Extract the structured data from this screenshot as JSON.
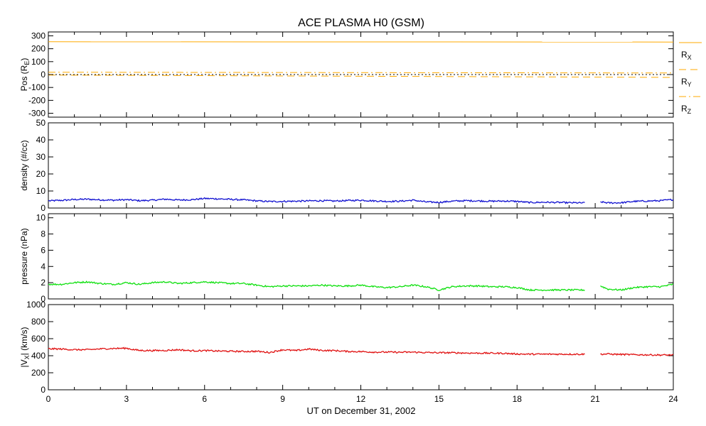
{
  "chart_data": {
    "title": "ACE PLASMA H0 (GSM)",
    "type": "line",
    "xlabel": "UT on December 31, 2002",
    "xlim": [
      0,
      24
    ],
    "xticks": [
      "0",
      "3",
      "6",
      "9",
      "12",
      "15",
      "18",
      "21",
      "24"
    ],
    "panels": [
      {
        "key": "pos",
        "ylabel_main": "Pos (R",
        "ylabel_sub": "E",
        "ylabel_tail": ")",
        "ylim": [
          -330,
          330
        ],
        "yticks": [
          "300",
          "200",
          "100",
          "0",
          "-100",
          "-200",
          "-300"
        ],
        "legend": [
          {
            "base": "R",
            "sub": "X",
            "color": "#ffaa00",
            "style": "solid"
          },
          {
            "base": "R",
            "sub": "Y",
            "color": "#ffaa00",
            "style": "dashed"
          },
          {
            "base": "R",
            "sub": "Z",
            "color": "#ffaa00",
            "style": "dashdot"
          }
        ],
        "series": [
          {
            "name": "RX",
            "color": "#ffaa00",
            "style": "solid",
            "x": [
              0,
              24
            ],
            "values": [
              254,
              252
            ]
          },
          {
            "name": "RY",
            "color": "#ffaa00",
            "style": "dashed",
            "x": [
              0,
              24
            ],
            "values": [
              -4,
              -22
            ]
          },
          {
            "name": "RZ",
            "color": "#ffaa00",
            "style": "dashdot",
            "x": [
              0,
              24
            ],
            "values": [
              18,
              12
            ]
          },
          {
            "name": "zero",
            "color": "#000000",
            "style": "dotted",
            "x": [
              0,
              24
            ],
            "values": [
              0,
              0
            ]
          }
        ]
      },
      {
        "key": "density",
        "ylabel_main": "density (#/cc)",
        "ylim": [
          0,
          50
        ],
        "yticks": [
          "50",
          "40",
          "30",
          "20",
          "10",
          "0"
        ],
        "series": [
          {
            "name": "density",
            "color": "#1010d0",
            "style": "noisy",
            "x": [
              0,
              0.5,
              1.0,
              1.5,
              2.0,
              2.5,
              3.0,
              3.5,
              4.0,
              4.5,
              5.0,
              5.5,
              6.0,
              6.5,
              7.0,
              7.5,
              8.0,
              8.5,
              9.0,
              9.5,
              10.0,
              10.5,
              11.0,
              11.5,
              12.0,
              12.5,
              13.0,
              13.5,
              14.0,
              14.5,
              15.0,
              15.5,
              16.0,
              16.5,
              17.0,
              17.5,
              18.0,
              18.5,
              19.0,
              19.5,
              20.0,
              20.6,
              null,
              21.2,
              21.5,
              22.0,
              22.5,
              23.0,
              23.5,
              24.0
            ],
            "values": [
              4.2,
              4.5,
              5.0,
              5.2,
              4.8,
              4.6,
              4.9,
              4.3,
              4.6,
              5.2,
              4.7,
              4.9,
              5.6,
              5.4,
              5.1,
              4.8,
              4.2,
              3.8,
              3.9,
              4.0,
              4.2,
              4.3,
              4.1,
              4.4,
              4.6,
              4.2,
              3.9,
              4.0,
              4.6,
              3.6,
              3.3,
              4.0,
              4.3,
              4.2,
              4.0,
              4.1,
              3.9,
              3.2,
              3.4,
              3.3,
              3.1,
              3.0,
              null,
              3.6,
              3.0,
              3.1,
              3.9,
              4.1,
              4.3,
              5.0
            ]
          }
        ]
      },
      {
        "key": "pressure",
        "ylabel_main": "pressure (nPa)",
        "ylim": [
          0,
          10.5
        ],
        "yticks": [
          "10",
          "8",
          "6",
          "4",
          "2",
          "0"
        ],
        "series": [
          {
            "name": "pressure",
            "color": "#10e010",
            "style": "noisy",
            "x": [
              0,
              0.5,
              1.0,
              1.5,
              2.0,
              2.5,
              3.0,
              3.5,
              4.0,
              4.5,
              5.0,
              5.5,
              6.0,
              6.5,
              7.0,
              7.5,
              8.0,
              8.5,
              9.0,
              9.5,
              10.0,
              10.5,
              11.0,
              11.5,
              12.0,
              12.5,
              13.0,
              13.5,
              14.0,
              14.5,
              15.0,
              15.5,
              16.0,
              16.5,
              17.0,
              17.5,
              18.0,
              18.5,
              19.0,
              19.5,
              20.0,
              20.6,
              null,
              21.2,
              21.5,
              22.0,
              22.5,
              23.0,
              23.5,
              24.0
            ],
            "values": [
              1.8,
              1.8,
              2.0,
              2.1,
              1.9,
              1.8,
              2.0,
              1.8,
              2.0,
              2.1,
              1.9,
              2.0,
              2.1,
              2.0,
              1.9,
              1.9,
              1.7,
              1.5,
              1.6,
              1.6,
              1.6,
              1.7,
              1.6,
              1.6,
              1.7,
              1.5,
              1.4,
              1.5,
              1.7,
              1.5,
              1.1,
              1.5,
              1.6,
              1.6,
              1.5,
              1.5,
              1.4,
              1.1,
              1.1,
              1.1,
              1.1,
              1.1,
              null,
              1.6,
              1.2,
              1.1,
              1.4,
              1.5,
              1.5,
              1.8
            ]
          }
        ]
      },
      {
        "key": "vx",
        "ylabel_main": "|V",
        "ylabel_sub": "X",
        "ylabel_tail": "| (km/s)",
        "ylim": [
          0,
          1000
        ],
        "yticks": [
          "1000",
          "800",
          "600",
          "400",
          "200",
          "0"
        ],
        "series": [
          {
            "name": "vx",
            "color": "#e01010",
            "style": "noisy",
            "x": [
              0,
              0.5,
              1.0,
              1.5,
              2.0,
              2.5,
              3.0,
              3.3,
              3.5,
              4.0,
              4.5,
              5.0,
              5.5,
              6.0,
              6.5,
              7.0,
              7.5,
              8.0,
              8.5,
              9.0,
              9.5,
              10.0,
              10.5,
              11.0,
              11.5,
              12.0,
              12.5,
              13.0,
              13.5,
              14.0,
              14.5,
              15.0,
              15.5,
              16.0,
              16.5,
              17.0,
              17.5,
              18.0,
              18.5,
              19.0,
              19.5,
              20.0,
              20.6,
              null,
              21.2,
              21.5,
              22.0,
              22.5,
              23.0,
              23.5,
              24.0
            ],
            "values": [
              482,
              478,
              470,
              470,
              480,
              485,
              488,
              470,
              462,
              460,
              462,
              470,
              458,
              460,
              455,
              452,
              450,
              452,
              438,
              470,
              460,
              478,
              462,
              460,
              450,
              448,
              442,
              442,
              440,
              442,
              437,
              435,
              435,
              432,
              430,
              430,
              428,
              420,
              418,
              418,
              418,
              418,
              418,
              null,
              418,
              420,
              415,
              412,
              410,
              408,
              408
            ]
          }
        ]
      }
    ]
  }
}
